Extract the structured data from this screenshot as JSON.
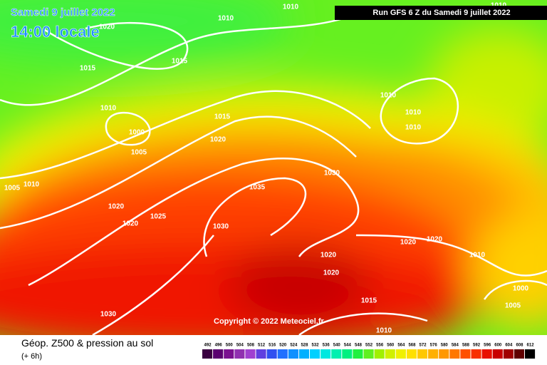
{
  "header": {
    "date": "Samedi 9 juillet 2022",
    "time": "14:00 locale",
    "run": "Run GFS 6 Z du Samedi 9 juillet 2022"
  },
  "copyright": "Copyright © 2022 Meteociel.fr",
  "footer": {
    "title": "Géop. Z500 & pression au sol",
    "subtitle": "(+ 6h)"
  },
  "isobar_labels": [
    "1010",
    "1010",
    "1010",
    "1020",
    "1015",
    "1015",
    "1010",
    "1000",
    "1005",
    "1015",
    "1020",
    "1010",
    "1010",
    "1010",
    "1030",
    "1035",
    "1005",
    "1010",
    "1020",
    "1025",
    "1020",
    "1030",
    "1020",
    "1020",
    "1010",
    "1020",
    "1020",
    "1000",
    "1005",
    "1015",
    "1030",
    "1010"
  ],
  "scale": {
    "levels": [
      492,
      496,
      500,
      504,
      508,
      512,
      516,
      520,
      524,
      528,
      532,
      536,
      540,
      544,
      548,
      552,
      556,
      560,
      564,
      568,
      572,
      576,
      580,
      584,
      588,
      592,
      596,
      600,
      604,
      608,
      612
    ],
    "colors": [
      "#3a0040",
      "#5a0070",
      "#7a1090",
      "#9030b0",
      "#a040d0",
      "#6040e0",
      "#3050f0",
      "#2070ff",
      "#1090ff",
      "#00b0ff",
      "#00d0ff",
      "#00e8e0",
      "#00f0b0",
      "#00f080",
      "#20f040",
      "#60f020",
      "#a0f000",
      "#d0f000",
      "#f0f000",
      "#ffe000",
      "#ffc800",
      "#ffb000",
      "#ff9800",
      "#ff7800",
      "#ff5000",
      "#f83000",
      "#e81000",
      "#c80000",
      "#a00000",
      "#600000",
      "#000000"
    ]
  }
}
